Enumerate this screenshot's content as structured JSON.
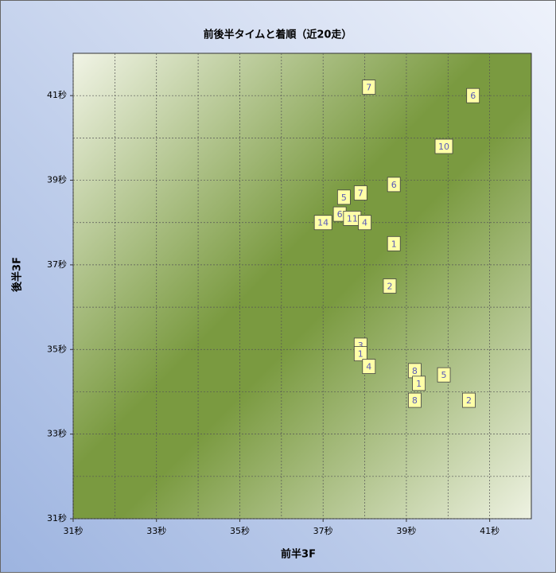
{
  "chart_data": {
    "type": "scatter",
    "title": "前後半タイムと着順（近20走）",
    "xlabel": "前半3F",
    "ylabel": "後半3F",
    "x": [
      38.1,
      40.6,
      39.9,
      38.7,
      37.9,
      37.5,
      37.4,
      37.0,
      37.7,
      38.0,
      38.7,
      38.6,
      37.9,
      37.9,
      38.1,
      39.2,
      39.9,
      39.3,
      39.2,
      40.5
    ],
    "values": [
      41.2,
      41.0,
      39.8,
      38.9,
      38.7,
      38.6,
      38.2,
      38.0,
      38.1,
      38.0,
      37.5,
      36.5,
      35.1,
      34.9,
      34.6,
      34.5,
      34.4,
      34.2,
      33.8,
      33.8
    ],
    "labels": [
      "7",
      "6",
      "10",
      "6",
      "7",
      "5",
      "6",
      "14",
      "11",
      "4",
      "1",
      "2",
      "3",
      "1",
      "4",
      "8",
      "5",
      "1",
      "8",
      "2"
    ],
    "color": "#ffffa8",
    "xlim": [
      31,
      42
    ],
    "ylim": [
      31,
      42
    ],
    "xticks": [
      {
        "value": 31,
        "label": "31秒"
      },
      {
        "value": 33,
        "label": "33秒"
      },
      {
        "value": 35,
        "label": "35秒"
      },
      {
        "value": 37,
        "label": "37秒"
      },
      {
        "value": 39,
        "label": "39秒"
      },
      {
        "value": 41,
        "label": "41秒"
      }
    ],
    "yticks": [
      {
        "value": 31,
        "label": "31秒"
      },
      {
        "value": 33,
        "label": "33秒"
      },
      {
        "value": 35,
        "label": "35秒"
      },
      {
        "value": 37,
        "label": "37秒"
      },
      {
        "value": 39,
        "label": "39秒"
      },
      {
        "value": 41,
        "label": "41秒"
      }
    ],
    "x_minor_ticks": [
      32,
      34,
      36,
      38,
      40
    ],
    "y_minor_ticks": [
      32,
      34,
      36,
      38,
      40
    ],
    "grid": true
  }
}
